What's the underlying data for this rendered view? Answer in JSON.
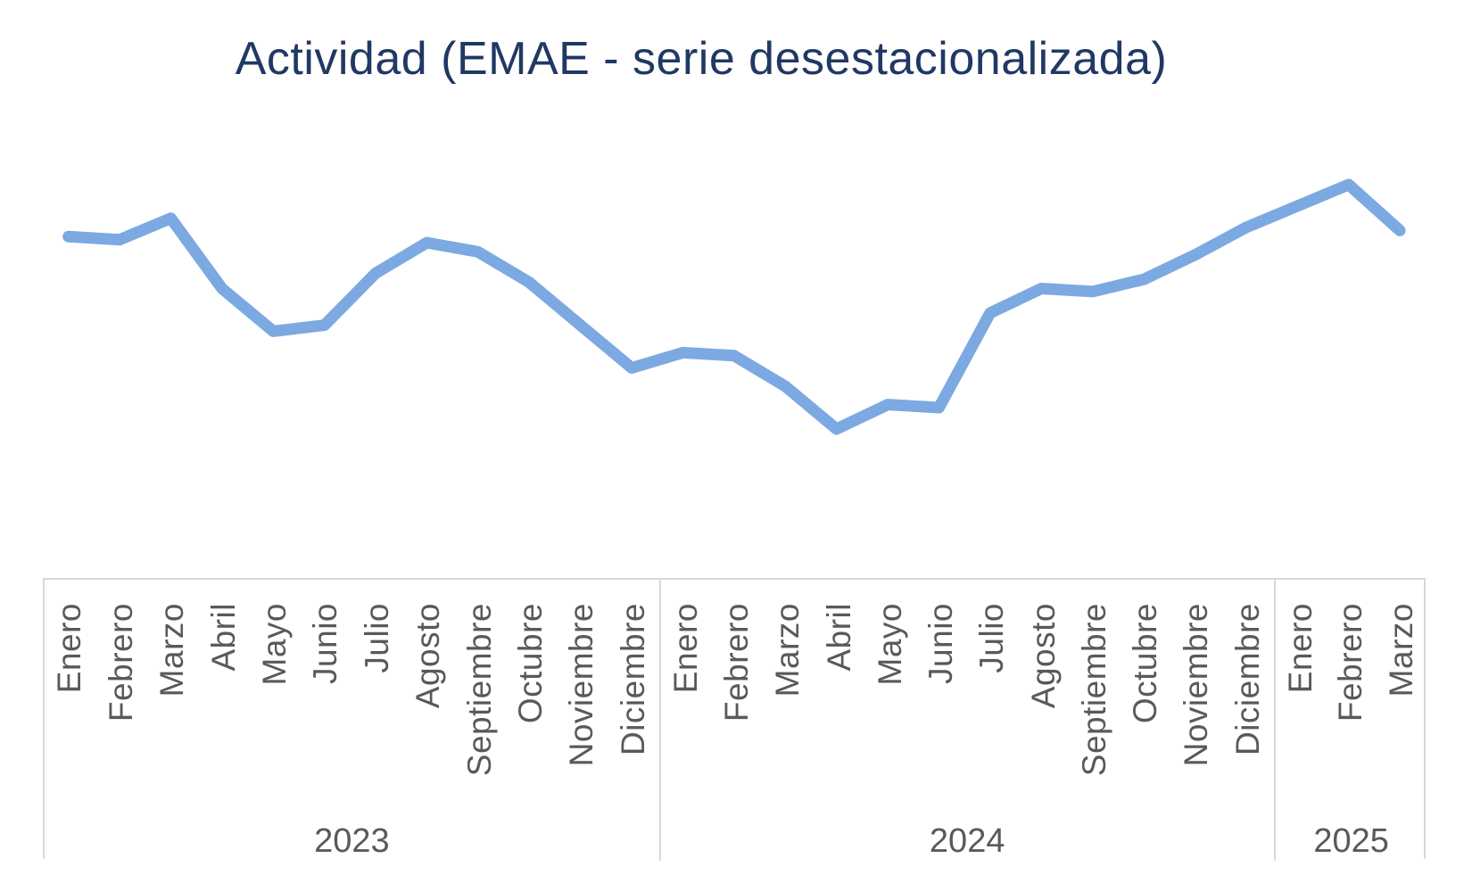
{
  "title": "Actividad (EMAE - serie desestacionalizada)",
  "colors": {
    "line": "#7CA9E1",
    "title_text": "#203864",
    "axis_text": "#595959",
    "table_border": "#D9D9D9"
  },
  "chart_data": {
    "type": "line",
    "title": "Actividad (EMAE - serie desestacionalizada)",
    "xlabel": "",
    "ylabel": "",
    "ylim": [
      143.8,
      151.8
    ],
    "grid": false,
    "legend": "none",
    "year_groups": [
      {
        "label": "2023",
        "months": [
          "Enero",
          "Febrero",
          "Marzo",
          "Abril",
          "Mayo",
          "Junio",
          "Julio",
          "Agosto",
          "Septiembre",
          "Octubre",
          "Noviembre",
          "Diciembre"
        ]
      },
      {
        "label": "2024",
        "months": [
          "Enero",
          "Febrero",
          "Marzo",
          "Abril",
          "Mayo",
          "Junio",
          "Julio",
          "Agosto",
          "Septiembre",
          "Octubre",
          "Noviembre",
          "Diciembre"
        ]
      },
      {
        "label": "2025",
        "months": [
          "Enero",
          "Febrero",
          "Marzo"
        ]
      }
    ],
    "series": [
      {
        "name": "EMAE serie desestacionalizada",
        "values": [
          150.1,
          150.0,
          150.7,
          148.4,
          147.0,
          147.2,
          148.9,
          149.9,
          149.6,
          148.6,
          147.2,
          145.8,
          146.3,
          146.2,
          145.2,
          143.8,
          144.6,
          144.5,
          147.6,
          148.4,
          148.3,
          148.7,
          149.5,
          150.4,
          151.1,
          151.8,
          150.3
        ]
      }
    ]
  }
}
